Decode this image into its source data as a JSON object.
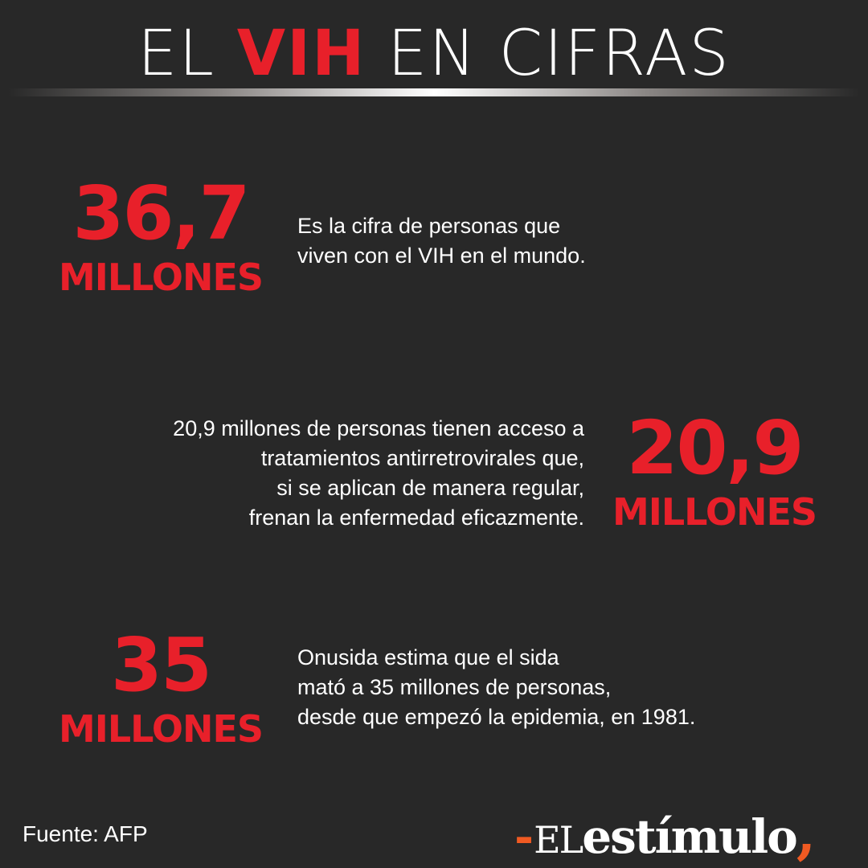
{
  "header": {
    "title_before": "EL",
    "title_highlight": "VIH",
    "title_after": "EN CIFRAS"
  },
  "stats": [
    {
      "number": "36,7",
      "unit": "MILLONES",
      "lines": [
        "Es la cifra de personas que",
        "viven con el VIH en el mundo."
      ]
    },
    {
      "number": "20,9",
      "unit": "MILLONES",
      "lines": [
        "20,9 millones de personas tienen acceso a",
        "tratamientos antirretrovirales que,",
        "si se aplican de manera regular,",
        "frenan la enfermedad eficazmente."
      ]
    },
    {
      "number": "35",
      "unit": "MILLONES",
      "lines": [
        "Onusida estima que el sida",
        "mató a 35 millones de personas,",
        "desde que empezó la epidemia, en 1981."
      ]
    }
  ],
  "footer": {
    "source": "Fuente: AFP",
    "logo": {
      "dash": "-",
      "prefix": "EL",
      "word": "estímulo",
      "comma": ","
    }
  },
  "colors": {
    "background": "#282828",
    "accent": "#e8202a",
    "logo_accent": "#f05a22"
  }
}
